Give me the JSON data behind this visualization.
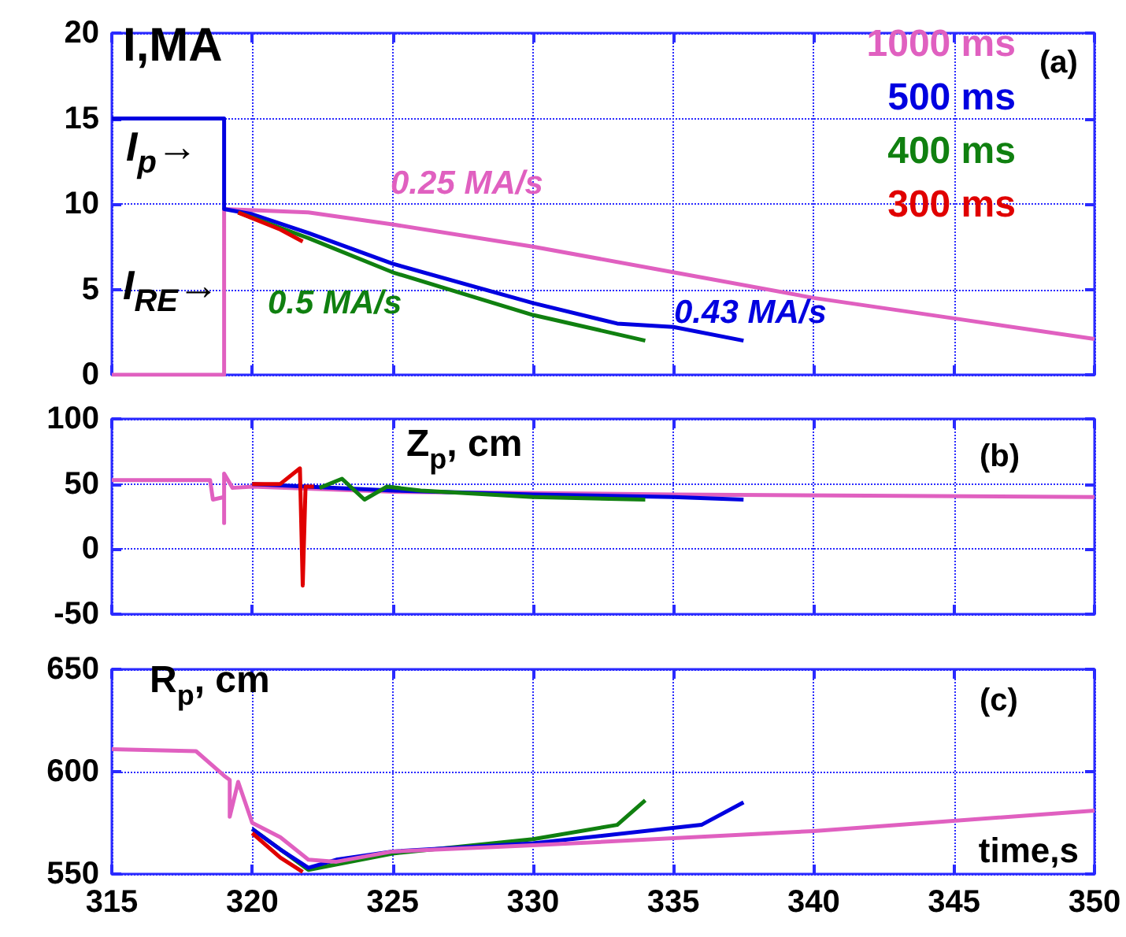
{
  "chart_data": [
    {
      "type": "line",
      "xlim": [
        315,
        350
      ],
      "xticks": [
        315,
        320,
        325,
        330,
        335,
        340,
        345,
        350
      ],
      "ylim": [
        0,
        20
      ],
      "yticks": [
        0,
        5,
        10,
        15,
        20
      ],
      "tick_labels": "y",
      "grid": true,
      "legend": "top right",
      "marker": "none",
      "line_style": "solid",
      "annotations": [
        "I,MA",
        "(a)",
        "I$_{p}$→",
        "I$_{RE}$→",
        "0.25 MA/s",
        "0.5 MA/s",
        "0.43 MA/s"
      ],
      "series": [
        {
          "name": "1000 ms",
          "color": "#e060c0",
          "x": [
            315,
            319,
            319,
            322,
            325,
            330,
            335,
            340,
            345,
            350
          ],
          "values": [
            0,
            0,
            9.7,
            9.5,
            8.8,
            7.5,
            6.0,
            4.5,
            3.3,
            2.1
          ]
        },
        {
          "name": "500 ms",
          "color": "#0000e0",
          "x": [
            315,
            319,
            319,
            320,
            322,
            325,
            330,
            333,
            335,
            337.5
          ],
          "values": [
            15,
            15,
            9.7,
            9.4,
            8.3,
            6.5,
            4.2,
            3.0,
            2.8,
            2.0
          ]
        },
        {
          "name": "400 ms",
          "color": "#108010",
          "x": [
            319.5,
            322,
            325,
            330,
            334
          ],
          "values": [
            9.5,
            8.0,
            6.0,
            3.5,
            2.0
          ]
        },
        {
          "name": "300 ms",
          "color": "#e00000",
          "x": [
            319.5,
            321,
            321.8
          ],
          "values": [
            9.5,
            8.5,
            7.8
          ]
        }
      ]
    },
    {
      "type": "line",
      "xlim": [
        315,
        350
      ],
      "xticks": [
        315,
        320,
        325,
        330,
        335,
        340,
        345,
        350
      ],
      "ylim": [
        -50,
        100
      ],
      "yticks": [
        -50,
        0,
        50,
        100
      ],
      "tick_labels": "y",
      "grid": true,
      "marker": "none",
      "line_style": "solid",
      "annotations": [
        "Z$_{p}$, cm",
        "(b)"
      ],
      "series": [
        {
          "color": "#e060c0",
          "x": [
            315,
            318.5,
            318.6,
            319,
            319,
            319,
            319.3,
            320,
            325,
            335,
            350
          ],
          "values": [
            53,
            53,
            38,
            40,
            20,
            58,
            47,
            48,
            44,
            42,
            40
          ]
        },
        {
          "color": "#0000e0",
          "x": [
            320,
            325,
            330,
            335,
            337.5
          ],
          "values": [
            50,
            45,
            42,
            40,
            38
          ]
        },
        {
          "color": "#108010",
          "x": [
            322.4,
            323.2,
            324,
            324.8,
            326,
            330,
            334
          ],
          "values": [
            47,
            54,
            38,
            48,
            45,
            40,
            38
          ]
        },
        {
          "color": "#e00000",
          "x": [
            320,
            321,
            321.7,
            321.8,
            321.9,
            322.2
          ],
          "values": [
            50,
            50,
            62,
            -28,
            48,
            48
          ]
        }
      ]
    },
    {
      "type": "line",
      "xlim": [
        315,
        350
      ],
      "xticks": [
        315,
        320,
        325,
        330,
        335,
        340,
        345,
        350
      ],
      "ylim": [
        550,
        650
      ],
      "yticks": [
        550,
        600,
        650
      ],
      "grid": true,
      "marker": "none",
      "line_style": "solid",
      "xlabel": "time,s",
      "annotations": [
        "R$_{p}$, cm",
        "(c)"
      ],
      "series": [
        {
          "color": "#108010",
          "x": [
            320,
            322,
            325,
            330,
            333,
            334
          ],
          "values": [
            572,
            552,
            560,
            567,
            574,
            586
          ]
        },
        {
          "color": "#0000e0",
          "x": [
            320,
            321,
            322,
            323,
            325,
            330,
            336,
            337.5
          ],
          "values": [
            572,
            562,
            553,
            557,
            561,
            565,
            574,
            585
          ]
        },
        {
          "color": "#e00000",
          "x": [
            320,
            321,
            321.8
          ],
          "values": [
            570,
            558,
            551
          ]
        },
        {
          "color": "#e060c0",
          "x": [
            315,
            318,
            319,
            319.2,
            319.2,
            319.5,
            320,
            321,
            322,
            323,
            325,
            330,
            340,
            350
          ],
          "values": [
            611,
            610,
            598,
            596,
            578,
            595,
            575,
            568,
            557,
            556,
            561,
            564,
            571,
            581
          ]
        }
      ]
    }
  ]
}
